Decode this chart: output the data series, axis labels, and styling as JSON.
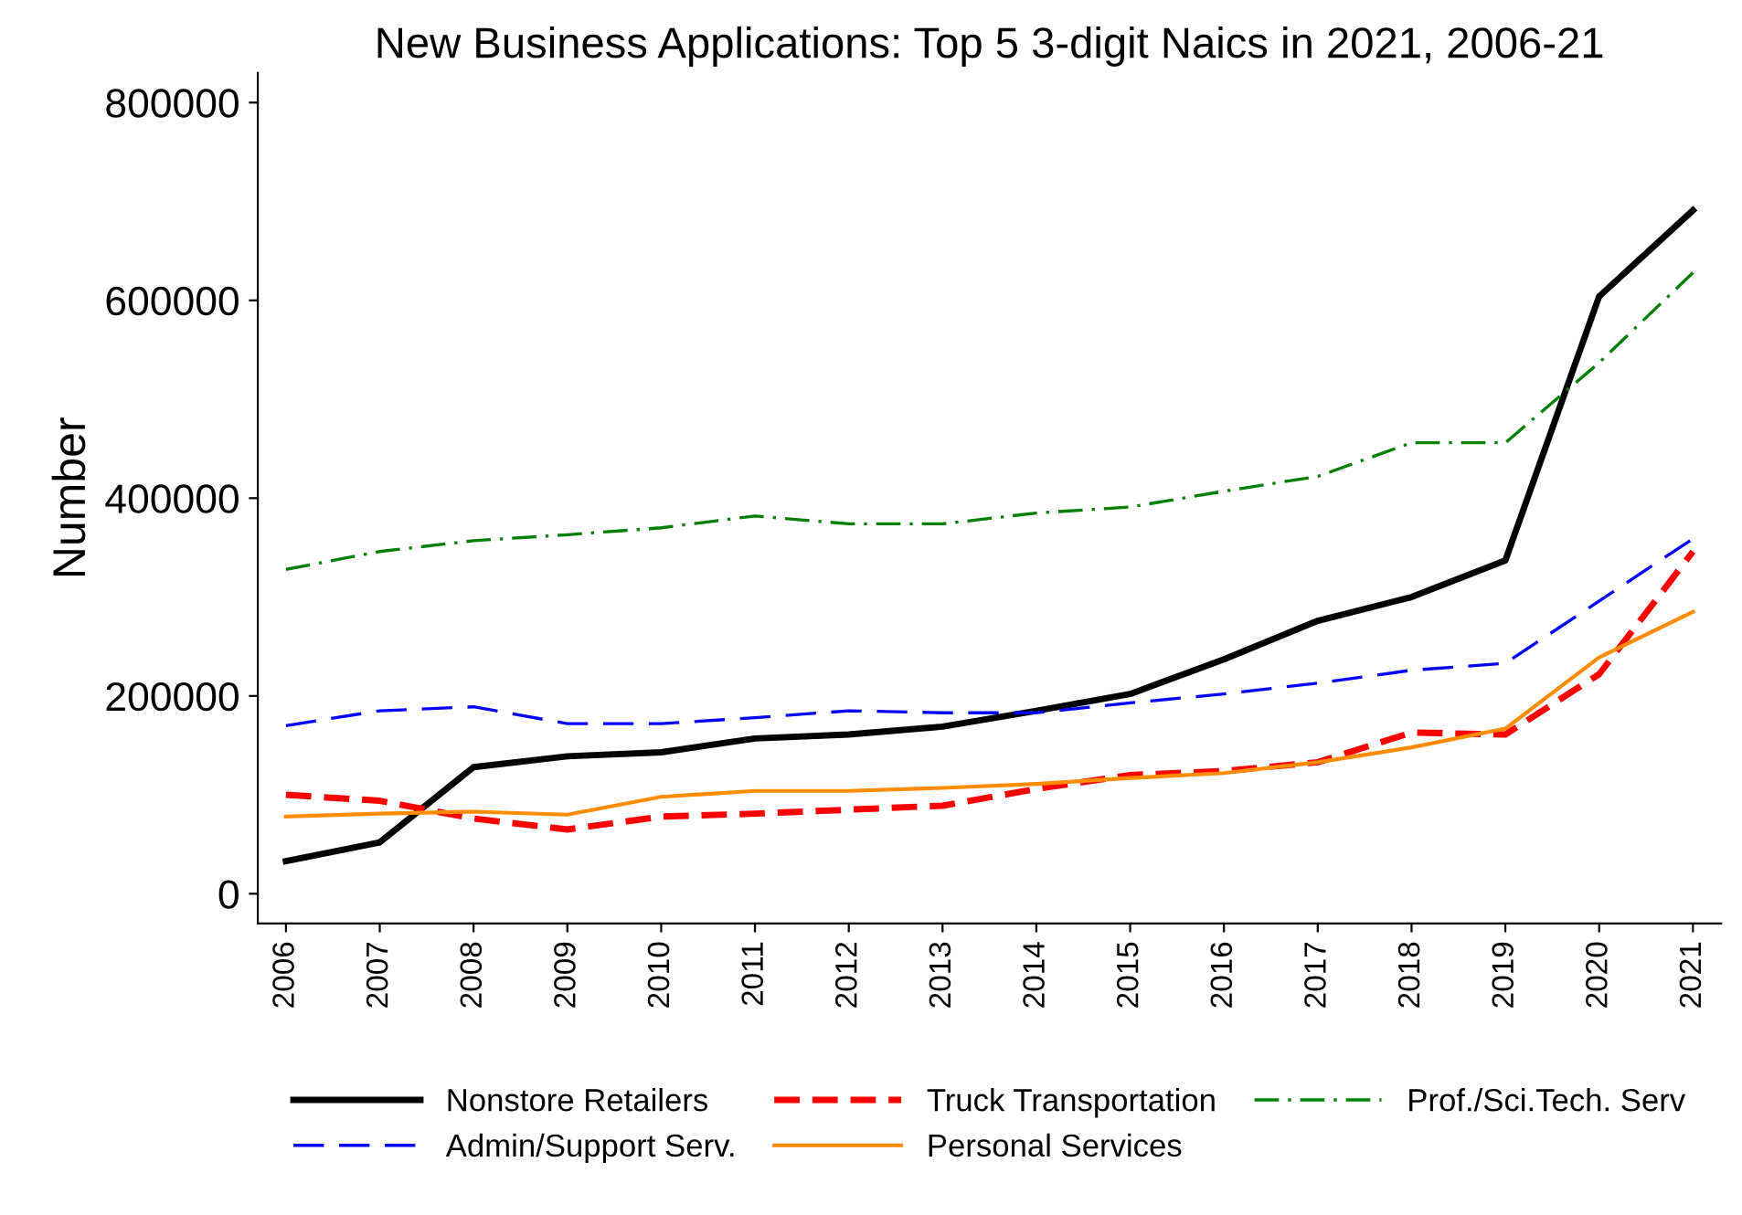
{
  "chart_data": {
    "type": "line",
    "title": "New Business Applications: Top 5 3-digit Naics in 2021, 2006-21",
    "ylabel": "Number",
    "categories": [
      "2006",
      "2007",
      "2008",
      "2009",
      "2010",
      "2011",
      "2012",
      "2013",
      "2014",
      "2015",
      "2016",
      "2017",
      "2018",
      "2019",
      "2020",
      "2021"
    ],
    "ylim": [
      -30000,
      830000
    ],
    "yticks": [
      0,
      200000,
      400000,
      600000,
      800000
    ],
    "grid": false,
    "legend": "bottom",
    "marker": "none",
    "series": [
      {
        "name": "Nonstore Retailers",
        "color": "#000000",
        "line_style": "solid",
        "values": [
          33000,
          52000,
          128000,
          139000,
          143000,
          157000,
          161000,
          169000,
          185000,
          202000,
          237000,
          276000,
          300000,
          337000,
          604000,
          691000
        ]
      },
      {
        "name": "Truck Transportation",
        "color": "#ff0000",
        "line_style": "dashed",
        "values": [
          100000,
          94000,
          76000,
          65000,
          78000,
          81000,
          85000,
          89000,
          106000,
          120000,
          124000,
          133000,
          163000,
          161000,
          222000,
          346000
        ]
      },
      {
        "name": "Prof./Sci.Tech. Serv",
        "color": "#008000",
        "line_style": "dashdot",
        "values": [
          328000,
          346000,
          357000,
          363000,
          370000,
          382000,
          374000,
          374000,
          385000,
          391000,
          407000,
          422000,
          456000,
          456000,
          537000,
          628000
        ]
      },
      {
        "name": "Admin/Support Serv.",
        "color": "#0000ff",
        "line_style": "longdash",
        "values": [
          170000,
          185000,
          189000,
          172000,
          172000,
          178000,
          185000,
          183000,
          183000,
          193000,
          202000,
          213000,
          226000,
          233000,
          296000,
          359000
        ]
      },
      {
        "name": "Personal Services",
        "color": "#ff8c00",
        "line_style": "solid",
        "values": [
          78000,
          81000,
          83000,
          80000,
          98000,
          104000,
          104000,
          107000,
          111000,
          117000,
          122000,
          133000,
          148000,
          167000,
          239000,
          285000
        ]
      }
    ]
  }
}
